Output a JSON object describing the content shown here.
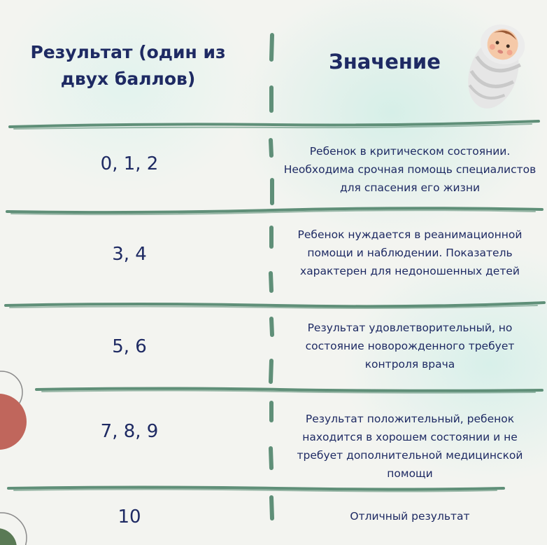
{
  "header": {
    "left_title": "Результат (один из двух баллов)",
    "right_title": "Значение"
  },
  "rows": [
    {
      "score": "0, 1, 2",
      "meaning": "Ребенок в критическом состоянии. Необходима срочная помощь специалистов для спасения его жизни"
    },
    {
      "score": "3, 4",
      "meaning": "Ребенок нуждается в реанимационной помощи и наблюдении. Показатель характерен для недоношенных детей"
    },
    {
      "score": "5, 6",
      "meaning": "Результат удовлетворительный, но состояние новорожденного требует контроля врача"
    },
    {
      "score": "7, 8, 9",
      "meaning": "Результат положительный, ребенок находится в хорошем состоянии и не требует дополнительной медицинской помощи"
    },
    {
      "score": "10",
      "meaning": "Отличный результат"
    }
  ],
  "colors": {
    "text": "#1e2a63",
    "line": "#5f8f78",
    "accent_red": "#c0665c",
    "accent_green": "#5a7a55",
    "background": "#f3f4f0"
  }
}
